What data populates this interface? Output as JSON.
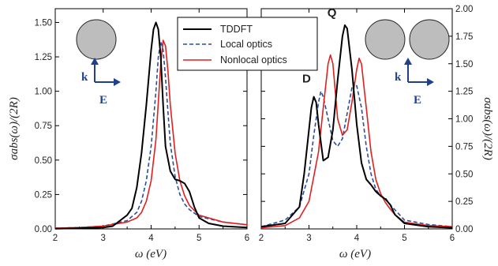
{
  "chart_data": [
    {
      "type": "line",
      "panel": "single-sphere",
      "xlabel": "ω (eV)",
      "ylabel": "σabs(ω)/(2R)",
      "xlim": [
        2,
        6
      ],
      "ylim": [
        0,
        1.6
      ],
      "x_ticks": [
        "2",
        "3",
        "4",
        "5",
        "6"
      ],
      "y_ticks": [
        "0.00",
        "0.25",
        "0.50",
        "0.75",
        "1.00",
        "1.25",
        "1.50"
      ],
      "y_axis_side": "left",
      "grid": false,
      "inset": {
        "shape": "one-sphere",
        "k_label": "k",
        "e_label": "E"
      },
      "series": [
        {
          "name": "TDDFT",
          "color": "#000000",
          "style": "solid",
          "x": [
            2.0,
            2.5,
            3.0,
            3.2,
            3.35,
            3.5,
            3.6,
            3.7,
            3.8,
            3.9,
            4.0,
            4.05,
            4.1,
            4.15,
            4.2,
            4.25,
            4.3,
            4.4,
            4.5,
            4.6,
            4.7,
            4.8,
            4.9,
            5.0,
            5.2,
            5.5,
            6.0
          ],
          "y": [
            0.002,
            0.005,
            0.01,
            0.02,
            0.06,
            0.1,
            0.15,
            0.3,
            0.55,
            0.9,
            1.3,
            1.45,
            1.5,
            1.45,
            1.25,
            0.9,
            0.6,
            0.42,
            0.36,
            0.35,
            0.33,
            0.27,
            0.16,
            0.08,
            0.04,
            0.02,
            0.01
          ]
        },
        {
          "name": "Local optics",
          "color": "#2b4d9c",
          "style": "dashed",
          "x": [
            2.0,
            2.5,
            3.0,
            3.5,
            3.7,
            3.8,
            3.9,
            4.0,
            4.1,
            4.15,
            4.2,
            4.25,
            4.3,
            4.35,
            4.4,
            4.5,
            4.6,
            4.7,
            4.8,
            5.0,
            5.5,
            6.0
          ],
          "y": [
            0.005,
            0.01,
            0.02,
            0.06,
            0.12,
            0.2,
            0.35,
            0.6,
            1.0,
            1.25,
            1.36,
            1.3,
            1.1,
            0.85,
            0.62,
            0.38,
            0.25,
            0.18,
            0.14,
            0.09,
            0.05,
            0.03
          ]
        },
        {
          "name": "Nonlocal optics",
          "color": "#e02020",
          "style": "solid",
          "x": [
            2.0,
            2.5,
            3.0,
            3.5,
            3.7,
            3.8,
            3.9,
            4.0,
            4.1,
            4.2,
            4.25,
            4.3,
            4.35,
            4.4,
            4.5,
            4.6,
            4.7,
            4.8,
            5.0,
            5.5,
            6.0
          ],
          "y": [
            0.005,
            0.01,
            0.02,
            0.05,
            0.08,
            0.12,
            0.2,
            0.35,
            0.65,
            1.2,
            1.37,
            1.33,
            1.15,
            0.9,
            0.55,
            0.35,
            0.24,
            0.17,
            0.1,
            0.05,
            0.03
          ]
        }
      ]
    },
    {
      "type": "line",
      "panel": "sphere-dimer",
      "xlabel": "ω (eV)",
      "ylabel": "σabs(ω)/(2R)",
      "xlim": [
        2,
        6
      ],
      "ylim": [
        0,
        2.0
      ],
      "x_ticks": [
        "2",
        "3",
        "4",
        "5",
        "6"
      ],
      "y_ticks": [
        "0.00",
        "0.25",
        "0.50",
        "0.75",
        "1.00",
        "1.25",
        "1.50",
        "1.75",
        "2.00"
      ],
      "y_axis_side": "right",
      "grid": false,
      "inset": {
        "shape": "two-spheres",
        "k_label": "k",
        "e_label": "E"
      },
      "annotations": [
        {
          "text": "D",
          "x": 2.95,
          "y": 1.33
        },
        {
          "text": "Q",
          "x": 3.48,
          "y": 1.93
        }
      ],
      "series": [
        {
          "name": "TDDFT",
          "color": "#000000",
          "style": "solid",
          "x": [
            2.0,
            2.5,
            2.8,
            2.9,
            3.0,
            3.05,
            3.1,
            3.15,
            3.2,
            3.3,
            3.4,
            3.5,
            3.6,
            3.7,
            3.75,
            3.8,
            3.9,
            4.0,
            4.1,
            4.2,
            4.3,
            4.4,
            4.5,
            4.6,
            4.7,
            4.8,
            5.0,
            5.5,
            6.0
          ],
          "y": [
            0.02,
            0.05,
            0.2,
            0.5,
            0.9,
            1.1,
            1.2,
            1.15,
            0.95,
            0.62,
            0.65,
            0.9,
            1.35,
            1.75,
            1.85,
            1.82,
            1.45,
            0.95,
            0.6,
            0.45,
            0.4,
            0.34,
            0.3,
            0.27,
            0.22,
            0.13,
            0.05,
            0.02,
            0.01
          ]
        },
        {
          "name": "Local optics",
          "color": "#2b4d9c",
          "style": "dashed",
          "x": [
            2.0,
            2.5,
            2.8,
            3.0,
            3.1,
            3.2,
            3.25,
            3.3,
            3.4,
            3.5,
            3.6,
            3.7,
            3.8,
            3.9,
            3.95,
            4.0,
            4.1,
            4.2,
            4.3,
            4.4,
            4.5,
            4.6,
            4.7,
            5.0,
            5.5,
            6.0
          ],
          "y": [
            0.02,
            0.08,
            0.2,
            0.5,
            0.85,
            1.15,
            1.25,
            1.2,
            1.0,
            0.8,
            0.75,
            0.82,
            1.05,
            1.28,
            1.33,
            1.3,
            1.1,
            0.75,
            0.5,
            0.36,
            0.3,
            0.28,
            0.22,
            0.08,
            0.04,
            0.02
          ]
        },
        {
          "name": "Nonlocal optics",
          "color": "#e02020",
          "style": "solid",
          "x": [
            2.0,
            2.5,
            2.8,
            3.0,
            3.2,
            3.3,
            3.4,
            3.45,
            3.5,
            3.6,
            3.7,
            3.8,
            3.9,
            4.0,
            4.05,
            4.1,
            4.2,
            4.3,
            4.4,
            4.5,
            4.6,
            4.7,
            4.8,
            5.0,
            5.5,
            6.0
          ],
          "y": [
            0.01,
            0.03,
            0.1,
            0.25,
            0.7,
            1.1,
            1.5,
            1.58,
            1.5,
            1.0,
            0.85,
            0.9,
            1.15,
            1.45,
            1.55,
            1.5,
            1.1,
            0.7,
            0.45,
            0.32,
            0.24,
            0.18,
            0.13,
            0.06,
            0.03,
            0.02
          ]
        }
      ]
    }
  ],
  "legend": {
    "placement": "top-center",
    "entries": [
      {
        "label": "TDDFT",
        "color": "#000000",
        "style": "solid"
      },
      {
        "label": "Local optics",
        "color": "#2b4d9c",
        "style": "dashed"
      },
      {
        "label": "Nonlocal optics",
        "color": "#e02020",
        "style": "solid"
      }
    ]
  },
  "colors": {
    "sphere_fill": "#bdbdbd",
    "arrow": "#1f3f8f"
  }
}
